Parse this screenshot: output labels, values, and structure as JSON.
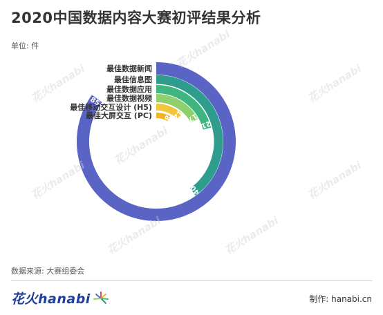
{
  "header": {
    "title": "2020中国数据内容大赛初评结果分析",
    "unit": "单位: 件"
  },
  "chart_data": {
    "type": "radial-bar",
    "series": [
      {
        "category": "最佳数据新闻",
        "value": 85,
        "color": "#5a64c4"
      },
      {
        "category": "最佳信息图",
        "value": 40,
        "color": "#2e9d8e"
      },
      {
        "category": "最佳数据应用",
        "value": 21,
        "color": "#3fb57f"
      },
      {
        "category": "最佳数据视频",
        "value": 17,
        "color": "#8ecf6e"
      },
      {
        "category": "最佳移动交互设计 (H5)",
        "value": 12,
        "color": "#f2c53d"
      },
      {
        "category": "最佳大屏交互 (PC)",
        "value": 8,
        "color": "#f0b324"
      }
    ]
  },
  "footer": {
    "source": "数据来源: 大赛组委会",
    "brand": "花火hanabi",
    "credit": "制作: hanabi.cn"
  },
  "watermark": "花火hanabi"
}
